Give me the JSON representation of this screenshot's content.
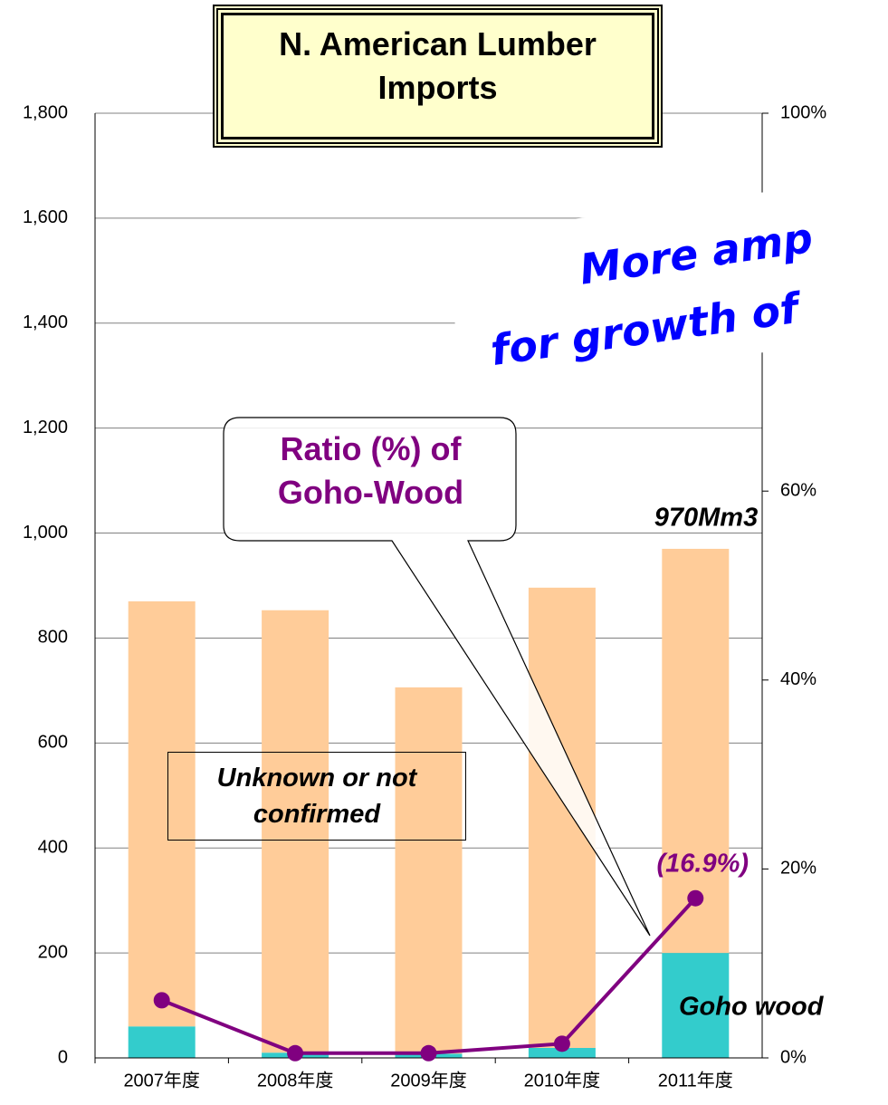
{
  "chart_data": {
    "type": "bar",
    "title": "N. American Lumber Imports",
    "categories": [
      "2007年度",
      "2008年度",
      "2009年度",
      "2010年度",
      "2011年度"
    ],
    "series": [
      {
        "name": "Goho wood",
        "color": "#33cccc",
        "values": [
          60,
          10,
          8,
          19,
          200
        ]
      },
      {
        "name": "Unknown or not confirmed",
        "color": "#ffcc99",
        "values": [
          810,
          843,
          698,
          877,
          770
        ]
      },
      {
        "name": "Ratio (%) of Goho-Wood",
        "type": "line",
        "axis": "y2",
        "color": "#800080",
        "values": [
          6.1,
          0.5,
          0.5,
          1.5,
          16.9
        ],
        "value_labels": [
          null,
          null,
          null,
          null,
          "(16.9%)"
        ]
      }
    ],
    "ylim": [
      0,
      1800
    ],
    "yticks": [
      0,
      200,
      400,
      600,
      800,
      {
        "value": 1000,
        "label": "1,000"
      },
      {
        "value": 1200,
        "label": "1,200"
      },
      {
        "value": 1400,
        "label": "1,400"
      },
      {
        "value": 1600,
        "label": "1,600"
      },
      {
        "value": 1800,
        "label": "1,800"
      }
    ],
    "y2lim": [
      0,
      100
    ],
    "y2ticks": [
      {
        "value": 0,
        "label": "0%"
      },
      {
        "value": 20,
        "label": "20%"
      },
      {
        "value": 40,
        "label": "40%"
      },
      {
        "value": 60,
        "label": "60%"
      },
      {
        "value": 100,
        "label": "100%"
      }
    ],
    "grid": true,
    "annotations": [
      "970Mm3",
      "More amp",
      "for growth of"
    ]
  }
}
